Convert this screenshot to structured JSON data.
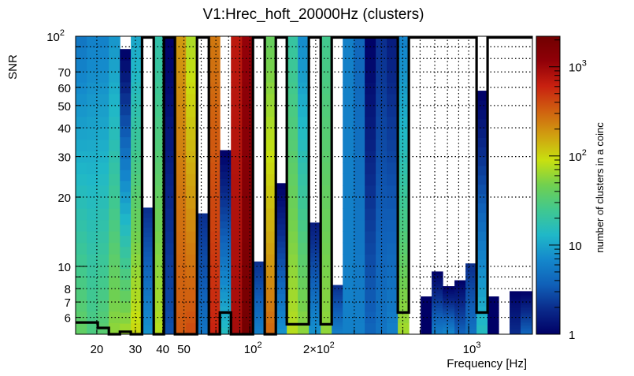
{
  "chart_data": {
    "type": "heatmap",
    "title": "V1:Hrec_hoft_20000Hz (clusters)",
    "xlabel": "Frequency [Hz]",
    "ylabel": "SNR",
    "zlabel": "number of clusters in a coinc",
    "x_scale": "log",
    "y_scale": "log",
    "z_scale": "log",
    "xlim": [
      16,
      1955
    ],
    "ylim": [
      5.07,
      100
    ],
    "zlim": [
      1,
      2200
    ],
    "grid": true,
    "x_ticks": [
      {
        "value": 20,
        "label": "20"
      },
      {
        "value": 30,
        "label": "30"
      },
      {
        "value": 40,
        "label": "40"
      },
      {
        "value": 50,
        "label": "50"
      },
      {
        "value": 100,
        "label": "10",
        "sup": "2"
      },
      {
        "value": 200,
        "label": "2×10",
        "sup": "2"
      },
      {
        "value": 1000,
        "label": "10",
        "sup": "3"
      }
    ],
    "x_minor": [
      20,
      30,
      40,
      50,
      60,
      70,
      80,
      90,
      100,
      200,
      300,
      400,
      500,
      600,
      700,
      800,
      900,
      1000
    ],
    "y_ticks": [
      {
        "value": 6,
        "label": "6"
      },
      {
        "value": 7,
        "label": "7"
      },
      {
        "value": 8,
        "label": "8"
      },
      {
        "value": 10,
        "label": "10"
      },
      {
        "value": 20,
        "label": "20"
      },
      {
        "value": 30,
        "label": "30"
      },
      {
        "value": 40,
        "label": "40"
      },
      {
        "value": 50,
        "label": "50"
      },
      {
        "value": 60,
        "label": "60"
      },
      {
        "value": 70,
        "label": "70"
      },
      {
        "value": 100,
        "label": "10",
        "sup": "2"
      }
    ],
    "y_minor": [
      6,
      7,
      8,
      9,
      10,
      20,
      30,
      40,
      50,
      60,
      70,
      80,
      90
    ],
    "z_ticks": [
      {
        "value": 1,
        "label": "1"
      },
      {
        "value": 10,
        "label": "10"
      },
      {
        "value": 100,
        "label": "10",
        "sup": "2"
      },
      {
        "value": 1000,
        "label": "10",
        "sup": "3"
      }
    ],
    "palette": [
      "#000066",
      "#0a2a8a",
      "#1060b8",
      "#1488cc",
      "#20b8c8",
      "#40c890",
      "#70d050",
      "#c8e010",
      "#d0a010",
      "#d06010",
      "#c82010",
      "#900008",
      "#700000"
    ],
    "bin_edges_hz": [
      16.0,
      18.0,
      20.2,
      22.7,
      25.5,
      28.6,
      32.2,
      36.4,
      40.5,
      45.5,
      51.1,
      57.4,
      65.0,
      73.0,
      82.0,
      92.1,
      103.4,
      117.0,
      131.5,
      147.6,
      165.7,
      186.1,
      210.8,
      236.7,
      265.8,
      298.5,
      335.1,
      376.3,
      422.6,
      474.6,
      533.0,
      603.6,
      677.6,
      760.9,
      861.5,
      967.5,
      1086.5,
      1220,
      1370,
      1538,
      1727,
      1955
    ],
    "columns": [
      {
        "max_snr": 100,
        "count_top": 5,
        "count_bottom": 40
      },
      {
        "max_snr": 100,
        "count_top": 6,
        "count_bottom": 30
      },
      {
        "max_snr": 100,
        "count_top": 6,
        "count_bottom": 35
      },
      {
        "max_snr": 100,
        "count_top": 8,
        "count_bottom": 60
      },
      {
        "max_snr": 88,
        "count_top": 1,
        "count_bottom": 70
      },
      {
        "max_snr": 100,
        "count_top": 10,
        "count_bottom": 100
      },
      {
        "max_snr": 18,
        "count_top": 2,
        "count_bottom": 8
      },
      {
        "max_snr": 100,
        "count_top": 18,
        "count_bottom": 80
      },
      {
        "max_snr": 100,
        "count_top": 1,
        "count_bottom": 3
      },
      {
        "max_snr": 100,
        "count_top": 180,
        "count_bottom": 350
      },
      {
        "max_snr": 100,
        "count_top": 70,
        "count_bottom": 400
      },
      {
        "max_snr": 17,
        "count_top": 2,
        "count_bottom": 5
      },
      {
        "max_snr": 100,
        "count_top": 250,
        "count_bottom": 600
      },
      {
        "max_snr": 32,
        "count_top": 1,
        "count_bottom": 15
      },
      {
        "max_snr": 100,
        "count_top": 700,
        "count_bottom": 900
      },
      {
        "max_snr": 100,
        "count_top": 1100,
        "count_bottom": 2000
      },
      {
        "max_snr": 10.5,
        "count_top": 2,
        "count_bottom": 6
      },
      {
        "max_snr": 100,
        "count_top": 40,
        "count_bottom": 300
      },
      {
        "max_snr": 23,
        "count_top": 1,
        "count_bottom": 8
      },
      {
        "max_snr": 100,
        "count_top": 20,
        "count_bottom": 80
      },
      {
        "max_snr": 100,
        "count_top": 7,
        "count_bottom": 60
      },
      {
        "max_snr": 15.5,
        "count_top": 1.5,
        "count_bottom": 8
      },
      {
        "max_snr": 100,
        "count_top": 25,
        "count_bottom": 60
      },
      {
        "max_snr": 8.3,
        "count_top": 2,
        "count_bottom": 6
      },
      {
        "max_snr": 100,
        "count_top": 6,
        "count_bottom": 6
      },
      {
        "max_snr": 100,
        "count_top": 4,
        "count_bottom": 6
      },
      {
        "max_snr": 100,
        "count_top": 1,
        "count_bottom": 4
      },
      {
        "max_snr": 100,
        "count_top": 2,
        "count_bottom": 5
      },
      {
        "max_snr": 100,
        "count_top": 1.5,
        "count_bottom": 6
      },
      {
        "max_snr": 100,
        "count_top": 6,
        "count_bottom": 70
      },
      {
        "max_snr": 0,
        "count_top": 0,
        "count_bottom": 0
      },
      {
        "max_snr": 7.4,
        "count_top": 1,
        "count_bottom": 1
      },
      {
        "max_snr": 9.5,
        "count_top": 1,
        "count_bottom": 6
      },
      {
        "max_snr": 8.2,
        "count_top": 1,
        "count_bottom": 7
      },
      {
        "max_snr": 8.7,
        "count_top": 1,
        "count_bottom": 4
      },
      {
        "max_snr": 10.3,
        "count_top": 2,
        "count_bottom": 5
      },
      {
        "max_snr": 58,
        "count_top": 1,
        "count_bottom": 15
      },
      {
        "max_snr": 7.4,
        "count_top": 1,
        "count_bottom": 1
      },
      {
        "max_snr": 0,
        "count_top": 0,
        "count_bottom": 0
      },
      {
        "max_snr": 7.8,
        "count_top": 1,
        "count_bottom": 2
      },
      {
        "max_snr": 7.8,
        "count_top": 1,
        "count_bottom": 4
      }
    ],
    "overlay_step_snr": [
      5.7,
      5.7,
      5.4,
      4,
      5.2,
      4,
      100,
      4,
      100,
      4,
      4,
      100,
      4,
      6.3,
      4,
      4,
      100,
      4,
      100,
      5.6,
      5.6,
      100,
      5.6,
      100,
      100,
      100,
      100,
      100,
      100,
      6.3,
      100,
      100,
      100,
      100,
      100,
      100,
      6.3,
      100,
      100,
      100,
      100
    ]
  }
}
